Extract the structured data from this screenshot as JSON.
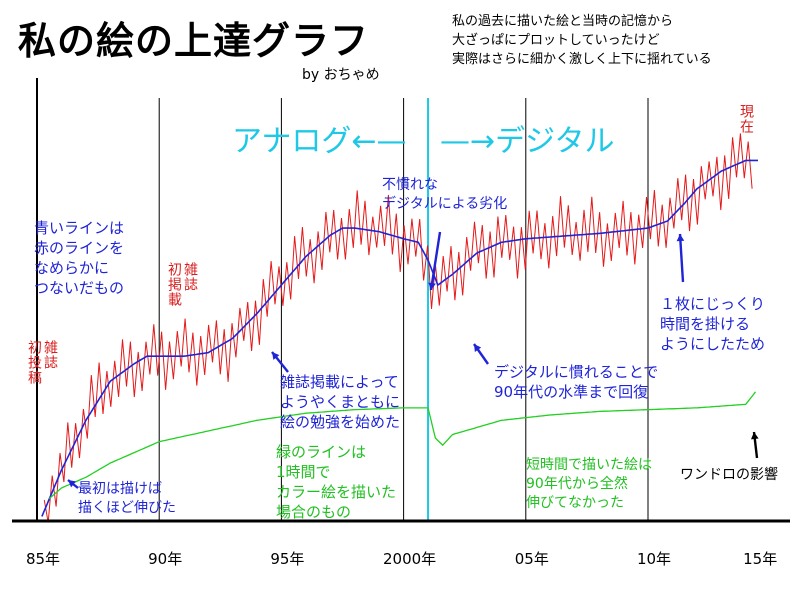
{
  "chart_data": {
    "type": "line",
    "title": "私の絵の上達グラフ",
    "byline": "by おちゃめ",
    "subtitle_lines": [
      "私の過去に描いた絵と当時の記憶から",
      "大ざっぱにプロットしていったけど",
      "実際はさらに細かく激しく上下に揺れている"
    ],
    "x_ticks": [
      {
        "value": 1985,
        "label": "85年"
      },
      {
        "value": 1990,
        "label": "90年"
      },
      {
        "value": 1995,
        "label": "95年"
      },
      {
        "value": 2000,
        "label": "2000年"
      },
      {
        "value": 2005,
        "label": "05年"
      },
      {
        "value": 2010,
        "label": "10年"
      },
      {
        "value": 2015,
        "label": "15年"
      }
    ],
    "xlim": [
      1984.5,
      2015.2
    ],
    "ylim": [
      0,
      100
    ],
    "divider_year": 2001,
    "era_labels": {
      "analog": "アナログ",
      "digital": "デジタル"
    },
    "series": [
      {
        "name": "blue-smoothed",
        "color": "#1f24d6",
        "x": [
          1985.2,
          1986,
          1987,
          1988,
          1989,
          1989.5,
          1990,
          1991,
          1992,
          1993,
          1994,
          1995,
          1996,
          1997,
          1997.5,
          1998,
          1999,
          2000,
          2000.6,
          2001,
          2001.4,
          2002,
          2003,
          2004,
          2005,
          2006,
          2008,
          2010,
          2010.8,
          2011.5,
          2012,
          2013,
          2014,
          2014.5
        ],
        "values": [
          1,
          14,
          28,
          39,
          44,
          46,
          46,
          46,
          47,
          51,
          58,
          66,
          74,
          80,
          82,
          82,
          81,
          79,
          78,
          73,
          66,
          69,
          75,
          78,
          79,
          79.5,
          80.5,
          82,
          84,
          89,
          93,
          98,
          101,
          101
        ]
      },
      {
        "name": "green-quick",
        "color": "#22d022",
        "x": [
          1985.5,
          1986,
          1987,
          1988,
          1989,
          1990,
          1992,
          1994,
          1996,
          1998,
          2000,
          2001,
          2001.3,
          2001.6,
          2002,
          2003,
          2004,
          2006,
          2008,
          2010,
          2012,
          2014,
          2014.4
        ],
        "values": [
          6,
          9,
          12,
          16,
          19,
          22,
          25,
          28,
          30,
          31,
          31.5,
          31.5,
          23,
          21,
          24,
          26,
          28,
          29.5,
          30.5,
          31,
          31.5,
          32.5,
          36
        ]
      },
      {
        "name": "red-raw",
        "color": "#e41a1a",
        "x_start": 1985.3,
        "x_end": 2014.4,
        "step": 0.16,
        "oscillation_amplitude": 9,
        "note": "follows the blue line with rapid up-down swings"
      }
    ],
    "annotations": {
      "blue_line_note": [
        "青いラインは",
        "赤のラインを",
        "なめらかに",
        "つないだもの"
      ],
      "first_post": [
        "雑誌",
        "初投稿"
      ],
      "first_publish": [
        "雑誌",
        "初掲載"
      ],
      "early_growth": [
        "最初は描けば",
        "描くほど伸びた"
      ],
      "study_start": [
        "雑誌掲載によって",
        "ようやくまともに",
        "絵の勉強を始めた"
      ],
      "green_note": [
        "緑のラインは",
        "1時間で",
        "カラー絵を描いた",
        "場合のもの"
      ],
      "digital_decline": [
        "不慣れな",
        "デジタルによる劣化"
      ],
      "digital_recovery": [
        "デジタルに慣れることで",
        "90年代の水準まで回復"
      ],
      "quick_drawing": [
        "短時間で描いた絵は",
        "90年代から全然",
        "伸びてなかった"
      ],
      "careful_drawing": [
        "１枚にじっくり",
        "時間を掛ける",
        "ようにしたため"
      ],
      "now": "現在",
      "one_drawing": "ワンドロの影響"
    }
  }
}
